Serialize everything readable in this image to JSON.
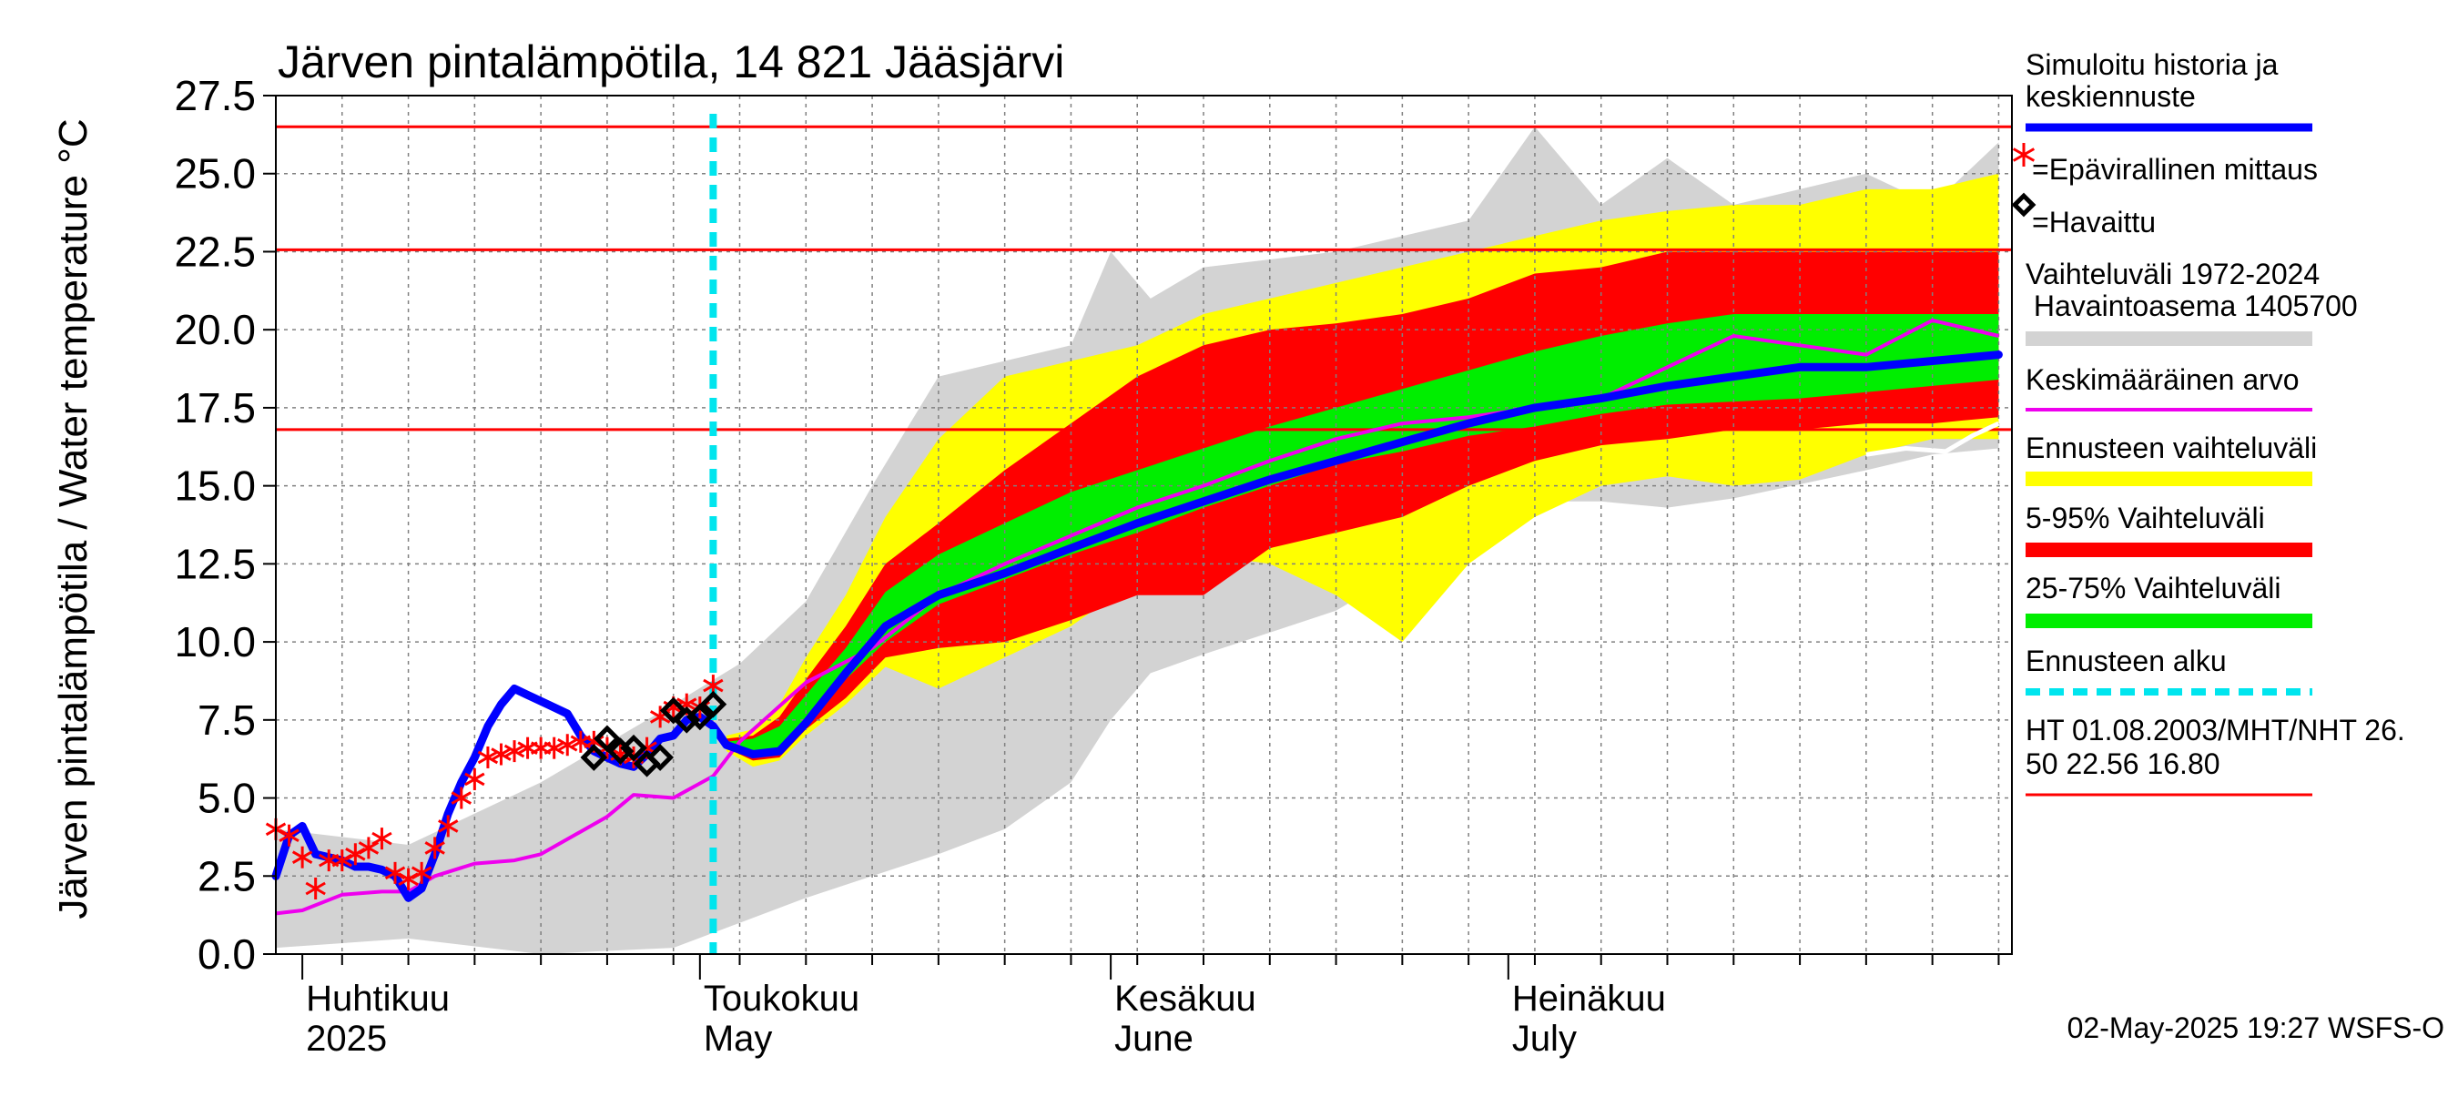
{
  "chart_data": {
    "type": "line",
    "title": "Järven pintalämpötila, 14 821 Jääsjärvi",
    "ylabel": "Järven pintalämpötila / Water temperature °C",
    "ylim": [
      0,
      27.5
    ],
    "yticks": [
      "0.0",
      "2.5",
      "5.0",
      "7.5",
      "10.0",
      "12.5",
      "15.0",
      "17.5",
      "20.0",
      "22.5",
      "25.0",
      "27.5"
    ],
    "x_start": "2025-03-30",
    "x_end": "2025-08-08",
    "month_labels": [
      {
        "date": "2025-04-01",
        "line1": "Huhtikuu",
        "line2": "2025"
      },
      {
        "date": "2025-05-01",
        "line1": "Toukokuu",
        "line2": "May"
      },
      {
        "date": "2025-06-01",
        "line1": "Kesäkuu",
        "line2": "June"
      },
      {
        "date": "2025-07-01",
        "line1": "Heinäkuu",
        "line2": "July"
      }
    ],
    "grid": true,
    "legend_position": "right",
    "forecast_start": "2025-05-02",
    "reference_lines": [
      {
        "name": "HT",
        "value": 26.5
      },
      {
        "name": "MHT",
        "value": 22.56
      },
      {
        "name": "NHT",
        "value": 16.8
      }
    ],
    "legend": {
      "simulated": [
        "Simuloitu historia ja",
        "keskiennuste"
      ],
      "unofficial": "=Epävirallinen mittaus",
      "observed": "=Havaittu",
      "range": [
        "Vaihteluväli 1972-2024",
        " Havaintoasema 1405700"
      ],
      "mean": "Keskimääräinen arvo",
      "forecast_range": "Ennusteen vaihteluväli",
      "p5_95": "5-95% Vaihteluväli",
      "p25_75": "25-75% Vaihteluväli",
      "forecast_start": "Ennusteen alku",
      "reference": [
        "HT 01.08.2003/MHT/NHT 26.",
        "50 22.56 16.80"
      ]
    },
    "colors": {
      "simulated": "#0000ff",
      "unofficial": "#ff0000",
      "observed": "#000000",
      "range": "#d3d3d3",
      "mean": "#ee00ee",
      "forecast_range": "#ffff00",
      "p5_95": "#ff0000",
      "p25_75": "#00ee00",
      "forecast_start": "#00e5ee",
      "reference": "#ff0000"
    },
    "footer": "02-May-2025 19:27 WSFS-O",
    "series": {
      "historical_range": {
        "days": [
          0,
          10,
          20,
          30,
          35,
          40,
          45,
          50,
          55,
          60,
          63,
          66,
          70,
          80,
          90,
          95,
          100,
          105,
          110,
          120,
          125,
          130
        ],
        "low": [
          0.2,
          0.5,
          0.0,
          0.2,
          1.0,
          1.8,
          2.5,
          3.2,
          4.0,
          5.5,
          7.5,
          9.0,
          9.6,
          11.0,
          13.5,
          14.5,
          14.5,
          14.3,
          14.6,
          15.5,
          16.0,
          16.2
        ],
        "high": [
          4.0,
          3.5,
          5.5,
          8.0,
          9.3,
          11.3,
          15.0,
          18.5,
          19.0,
          19.5,
          22.5,
          21.0,
          22.0,
          22.5,
          23.5,
          26.5,
          24.0,
          25.5,
          24.0,
          25.0,
          24.0,
          26.0
        ]
      },
      "forecast_bands": {
        "days": [
          34,
          36,
          38,
          40,
          43,
          46,
          50,
          55,
          60,
          65,
          70,
          75,
          80,
          85,
          90,
          95,
          100,
          105,
          110,
          115,
          120,
          125,
          130
        ],
        "range_low": [
          6.5,
          6.0,
          6.2,
          7.0,
          8.0,
          9.2,
          8.5,
          9.5,
          10.5,
          12.0,
          12.8,
          12.5,
          11.5,
          10.0,
          12.5,
          14.0,
          15.0,
          15.3,
          15.0,
          15.2,
          16.0,
          16.5,
          16.5
        ],
        "range_high": [
          7.0,
          7.2,
          8.0,
          9.5,
          11.5,
          14.0,
          16.5,
          18.5,
          19.0,
          19.5,
          20.5,
          21.0,
          21.5,
          22.0,
          22.5,
          23.0,
          23.5,
          23.8,
          24.0,
          24.0,
          24.5,
          24.5,
          25.0
        ],
        "p5": [
          6.6,
          6.2,
          6.3,
          7.2,
          8.2,
          9.5,
          9.8,
          10.0,
          10.7,
          11.5,
          11.5,
          13.0,
          13.5,
          14.0,
          15.0,
          15.8,
          16.3,
          16.5,
          16.8,
          16.8,
          17.0,
          17.0,
          17.2
        ],
        "p95": [
          6.9,
          7.0,
          7.6,
          8.8,
          10.5,
          12.5,
          13.8,
          15.5,
          17.0,
          18.5,
          19.5,
          20.0,
          20.2,
          20.5,
          21.0,
          21.8,
          22.0,
          22.5,
          22.5,
          22.5,
          22.5,
          22.5,
          22.5
        ],
        "p25": [
          6.7,
          6.4,
          6.5,
          7.5,
          8.8,
          10.0,
          11.2,
          12.0,
          12.8,
          13.5,
          14.3,
          15.0,
          15.7,
          16.1,
          16.6,
          16.9,
          17.3,
          17.6,
          17.7,
          17.8,
          18.0,
          18.2,
          18.4
        ],
        "p75": [
          6.8,
          6.9,
          7.3,
          8.3,
          9.8,
          11.6,
          12.8,
          13.8,
          14.8,
          15.5,
          16.2,
          16.9,
          17.5,
          18.1,
          18.7,
          19.3,
          19.8,
          20.2,
          20.5,
          20.5,
          20.5,
          20.5,
          20.5
        ]
      },
      "simulated": {
        "days": [
          0,
          1,
          2,
          3,
          4,
          5,
          6,
          7,
          8,
          9,
          10,
          11,
          12,
          13,
          14,
          15,
          16,
          17,
          18,
          19,
          20,
          21,
          22,
          23,
          24,
          25,
          26,
          27,
          28,
          29,
          30,
          31,
          32,
          33,
          34,
          36,
          38,
          40,
          43,
          46,
          50,
          55,
          60,
          65,
          70,
          75,
          80,
          85,
          90,
          95,
          100,
          105,
          110,
          115,
          120,
          125,
          130
        ],
        "values": [
          2.5,
          3.8,
          4.1,
          3.2,
          3.1,
          3.0,
          2.8,
          2.8,
          2.7,
          2.5,
          1.8,
          2.1,
          3.2,
          4.5,
          5.5,
          6.3,
          7.3,
          8.0,
          8.5,
          8.3,
          8.1,
          7.9,
          7.7,
          7.0,
          6.5,
          6.3,
          6.1,
          6.0,
          6.4,
          6.9,
          7.0,
          7.5,
          7.6,
          7.3,
          6.7,
          6.4,
          6.5,
          7.4,
          9.0,
          10.5,
          11.5,
          12.2,
          13.0,
          13.8,
          14.5,
          15.2,
          15.8,
          16.4,
          17.0,
          17.5,
          17.8,
          18.2,
          18.5,
          18.8,
          18.8,
          19.0,
          19.2
        ]
      },
      "mean": {
        "days": [
          0,
          2,
          5,
          8,
          10,
          12,
          15,
          18,
          20,
          25,
          27,
          30,
          33,
          35,
          40,
          45,
          50,
          55,
          60,
          65,
          70,
          75,
          80,
          85,
          90,
          95,
          100,
          105,
          110,
          115,
          120,
          125,
          130
        ],
        "values": [
          1.3,
          1.4,
          1.9,
          2.0,
          2.0,
          2.5,
          2.9,
          3.0,
          3.2,
          4.4,
          5.1,
          5.0,
          5.7,
          6.8,
          8.7,
          9.8,
          11.5,
          12.5,
          13.4,
          14.3,
          15.0,
          15.8,
          16.5,
          17.0,
          17.2,
          17.5,
          17.8,
          18.8,
          19.8,
          19.5,
          19.2,
          20.3,
          19.8
        ]
      },
      "unofficial": {
        "days": [
          0,
          1,
          2,
          3,
          4,
          5,
          6,
          7,
          8,
          9,
          10,
          11,
          12,
          13,
          14,
          15,
          16,
          17,
          18,
          19,
          20,
          21,
          22,
          23,
          24,
          25,
          26,
          27,
          28,
          29,
          30,
          31,
          32,
          33
        ],
        "values": [
          4.0,
          3.8,
          3.1,
          2.1,
          3.0,
          3.0,
          3.2,
          3.4,
          3.7,
          2.6,
          2.4,
          2.6,
          3.4,
          4.1,
          5.0,
          5.6,
          6.3,
          6.4,
          6.5,
          6.6,
          6.6,
          6.6,
          6.7,
          6.8,
          6.8,
          6.6,
          6.4,
          6.3,
          6.6,
          7.6,
          7.9,
          8.0,
          7.9,
          8.6
        ]
      },
      "observed": {
        "days": [
          24,
          25,
          26,
          27,
          28,
          29,
          30,
          31,
          32,
          33
        ],
        "values": [
          6.3,
          6.9,
          6.5,
          6.6,
          6.1,
          6.3,
          7.8,
          7.5,
          7.6,
          8.0
        ]
      },
      "white_tail": {
        "days": [
          120,
          123,
          126,
          128,
          130
        ],
        "values": [
          16.0,
          16.2,
          16.1,
          16.6,
          17.0
        ]
      }
    }
  }
}
